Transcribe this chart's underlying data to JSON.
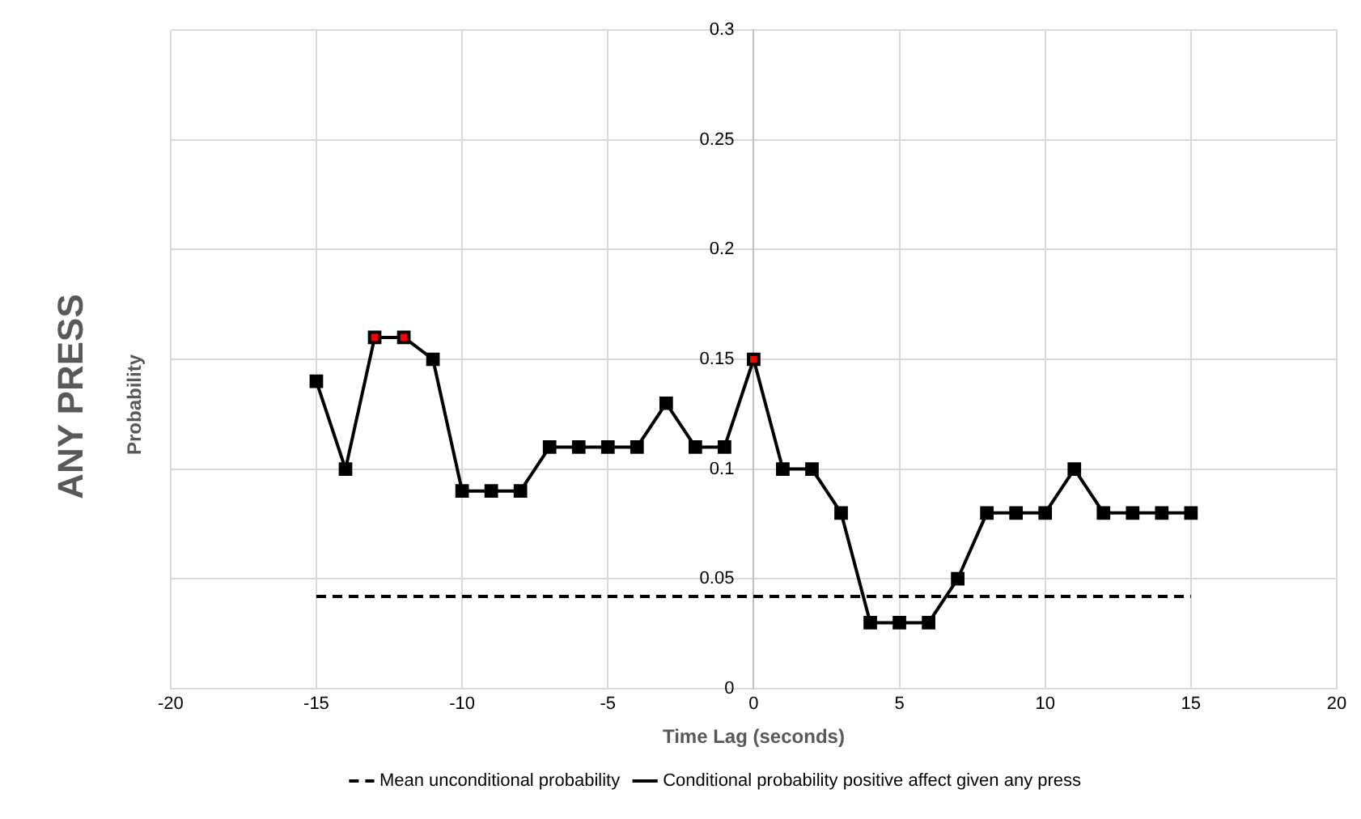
{
  "chart_data": {
    "type": "line",
    "title": "ANY PRESS",
    "xlabel": "Time Lag (seconds)",
    "ylabel": "Probability",
    "x": [
      -15,
      -14,
      -13,
      -12,
      -11,
      -10,
      -9,
      -8,
      -7,
      -6,
      -5,
      -4,
      -3,
      -2,
      -1,
      0,
      1,
      2,
      3,
      4,
      5,
      6,
      7,
      8,
      9,
      10,
      11,
      12,
      13,
      14,
      15
    ],
    "xlim": [
      -20,
      20
    ],
    "xticks": [
      -20,
      -15,
      -10,
      -5,
      0,
      5,
      10,
      15,
      20
    ],
    "ylim": [
      0,
      0.3
    ],
    "yticks": [
      0,
      0.05,
      0.1,
      0.15,
      0.2,
      0.25,
      0.3
    ],
    "grid": true,
    "legend": "bottom",
    "series": [
      {
        "name": "Mean unconditional probability",
        "color": "#000000",
        "line_style": "dashed",
        "marker": "none",
        "x": [
          -15,
          15
        ],
        "values": [
          0.042,
          0.042
        ]
      },
      {
        "name": "Conditional probability positive affect given any press",
        "color": "#000000",
        "line_style": "solid",
        "marker": "square",
        "values": [
          0.14,
          0.1,
          0.16,
          0.16,
          0.15,
          0.09,
          0.09,
          0.09,
          0.11,
          0.11,
          0.11,
          0.11,
          0.13,
          0.11,
          0.11,
          0.15,
          0.1,
          0.1,
          0.08,
          0.03,
          0.03,
          0.03,
          0.05,
          0.08,
          0.08,
          0.08,
          0.1,
          0.08,
          0.08,
          0.08,
          0.08
        ],
        "colors": [
          "#000000",
          "#000000",
          "#ff0000",
          "#ff0000",
          "#000000",
          "#000000",
          "#000000",
          "#000000",
          "#000000",
          "#000000",
          "#000000",
          "#000000",
          "#000000",
          "#000000",
          "#000000",
          "#ff0000",
          "#000000",
          "#000000",
          "#000000",
          "#000000",
          "#000000",
          "#000000",
          "#000000",
          "#000000",
          "#000000",
          "#000000",
          "#000000",
          "#000000",
          "#000000",
          "#000000",
          "#000000"
        ]
      }
    ]
  }
}
